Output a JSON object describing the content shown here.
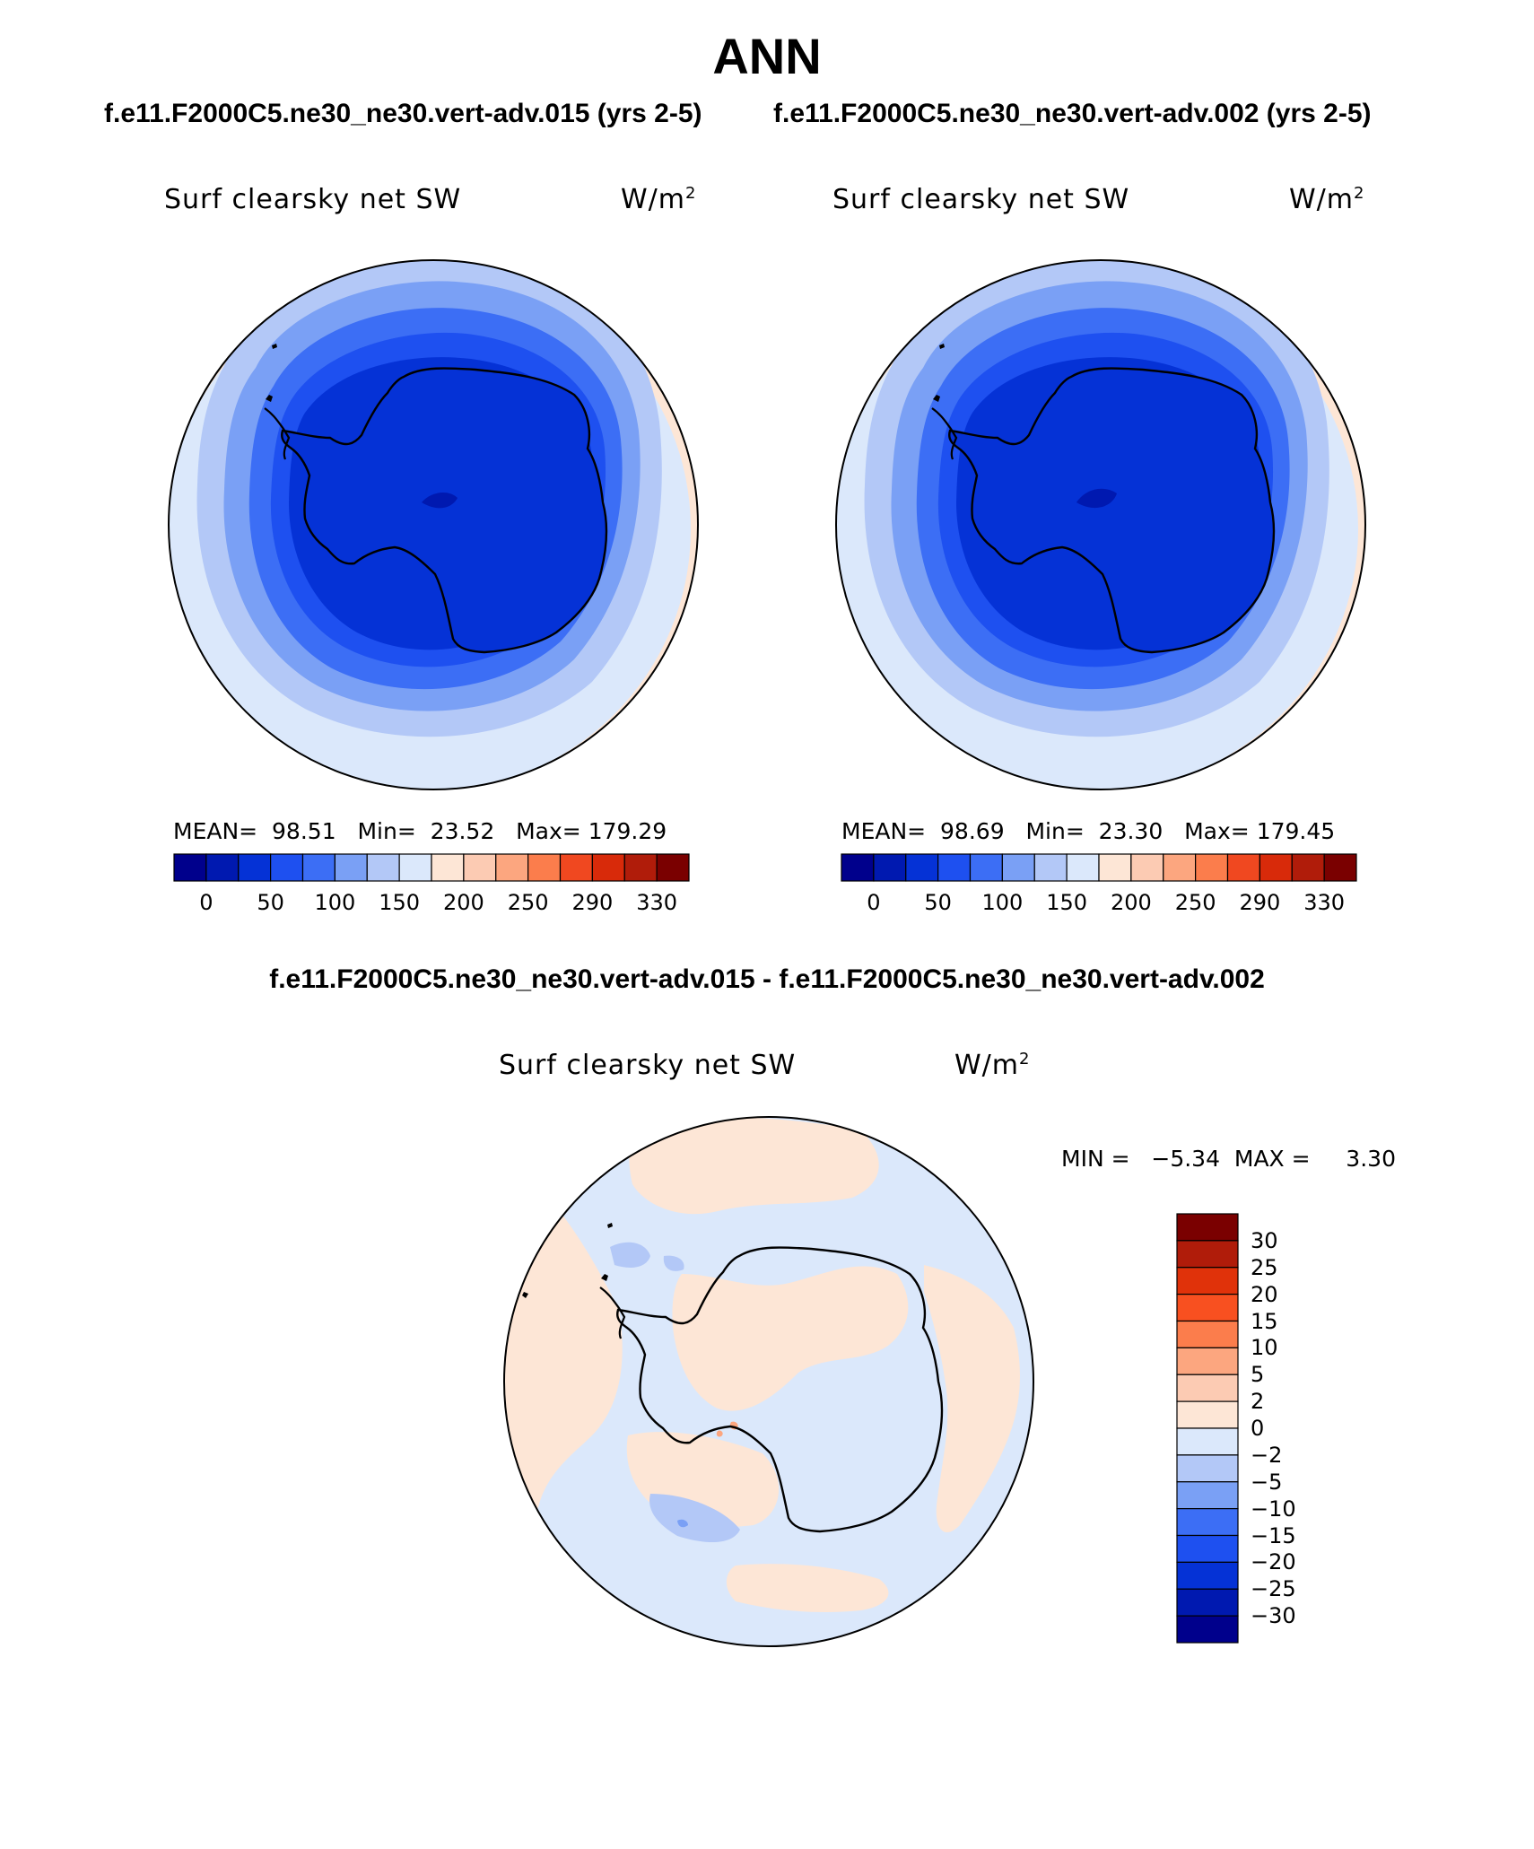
{
  "title": "ANN",
  "case_titles": {
    "left": "f.e11.F2000C5.ne30_ne30.vert-adv.015 (yrs 2-5)",
    "right": "f.e11.F2000C5.ne30_ne30.vert-adv.002 (yrs 2-5)"
  },
  "diff_title": "f.e11.F2000C5.ne30_ne30.vert-adv.015 - f.e11.F2000C5.ne30_ne30.vert-adv.002",
  "panels": {
    "left": {
      "variable": "Surf clearsky net SW",
      "units": "W/m",
      "units_sup": "2",
      "mean_label": "MEAN=",
      "mean": "98.51",
      "min_label": "Min=",
      "min": "23.52",
      "max_label": "Max=",
      "max": "179.29"
    },
    "right": {
      "variable": "Surf clearsky net SW",
      "units": "W/m",
      "units_sup": "2",
      "mean_label": "MEAN=",
      "mean": "98.69",
      "min_label": "Min=",
      "min": "23.30",
      "max_label": "Max=",
      "max": "179.45"
    },
    "diff": {
      "variable": "Surf clearsky net SW",
      "units": "W/m",
      "units_sup": "2",
      "minmax": "MIN =   −5.34  MAX =     3.30"
    }
  },
  "colorbar_top": {
    "colors": [
      "#00008c",
      "#0019b0",
      "#0532d6",
      "#1e50f0",
      "#3c6ef5",
      "#7aa0f5",
      "#b3c8f7",
      "#dbe8fb",
      "#fde6d6",
      "#fccbb3",
      "#fca67f",
      "#fb7d4c",
      "#f04820",
      "#d82a0a",
      "#b01c0a",
      "#7a0000"
    ],
    "ticks": [
      "0",
      "50",
      "100",
      "150",
      "200",
      "250",
      "290",
      "330"
    ]
  },
  "colorbar_diff": {
    "colors": [
      "#7a0000",
      "#b01c0a",
      "#e0320a",
      "#f85020",
      "#fb7d4c",
      "#fca67f",
      "#fccbb3",
      "#fde6d6",
      "#dbe8fb",
      "#b3c8f7",
      "#7aa0f5",
      "#3c6ef5",
      "#1e50f0",
      "#0532d6",
      "#0019b0",
      "#00008c"
    ],
    "ticks": [
      "30",
      "25",
      "20",
      "15",
      "10",
      "5",
      "2",
      "0",
      "−2",
      "−5",
      "−10",
      "−15",
      "−20",
      "−25",
      "−30"
    ]
  }
}
